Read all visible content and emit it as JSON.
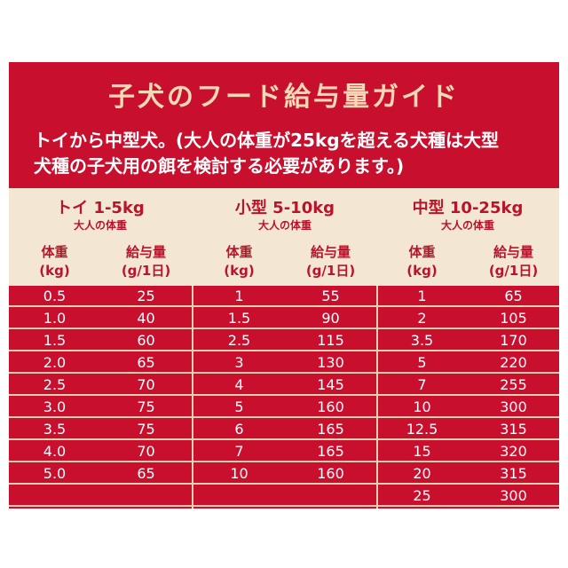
{
  "title": "子犬のフード給与量ガイド",
  "subtitle_lines": [
    "トイから中型犬。(大人の体重が25kgを超える犬種は大型",
    "犬種の子犬用の餌を検討する必要があります。)"
  ],
  "colors": {
    "accent": "#c8102e",
    "header_bg": "#f3e6d2",
    "title": "#f3d9b5",
    "header_text": "#b8142b"
  },
  "groups": [
    {
      "title": "トイ 1-5kg",
      "subtitle": "大人の体重",
      "weight_header": [
        "体重",
        "(kg)"
      ],
      "amount_header": [
        "給与量",
        "(g/1日)"
      ],
      "rows": [
        [
          "0.5",
          "25"
        ],
        [
          "1.0",
          "40"
        ],
        [
          "1.5",
          "60"
        ],
        [
          "2.0",
          "65"
        ],
        [
          "2.5",
          "70"
        ],
        [
          "3.0",
          "75"
        ],
        [
          "3.5",
          "75"
        ],
        [
          "4.0",
          "70"
        ],
        [
          "5.0",
          "65"
        ],
        [
          "",
          ""
        ]
      ]
    },
    {
      "title": "小型 5-10kg",
      "subtitle": "大人の体重",
      "weight_header": [
        "体重",
        "(kg)"
      ],
      "amount_header": [
        "給与量",
        "(g/1日)"
      ],
      "rows": [
        [
          "1",
          "55"
        ],
        [
          "1.5",
          "90"
        ],
        [
          "2.5",
          "115"
        ],
        [
          "3",
          "130"
        ],
        [
          "4",
          "145"
        ],
        [
          "5",
          "160"
        ],
        [
          "6",
          "165"
        ],
        [
          "7",
          "165"
        ],
        [
          "10",
          "160"
        ],
        [
          "",
          ""
        ]
      ]
    },
    {
      "title": "中型 10-25kg",
      "subtitle": "大人の体重",
      "weight_header": [
        "体重",
        "(kg)"
      ],
      "amount_header": [
        "給与量",
        "(g/1日)"
      ],
      "rows": [
        [
          "1",
          "65"
        ],
        [
          "2",
          "105"
        ],
        [
          "3.5",
          "170"
        ],
        [
          "5",
          "220"
        ],
        [
          "7",
          "255"
        ],
        [
          "10",
          "300"
        ],
        [
          "12.5",
          "315"
        ],
        [
          "15",
          "320"
        ],
        [
          "20",
          "315"
        ],
        [
          "25",
          "300"
        ]
      ]
    }
  ]
}
